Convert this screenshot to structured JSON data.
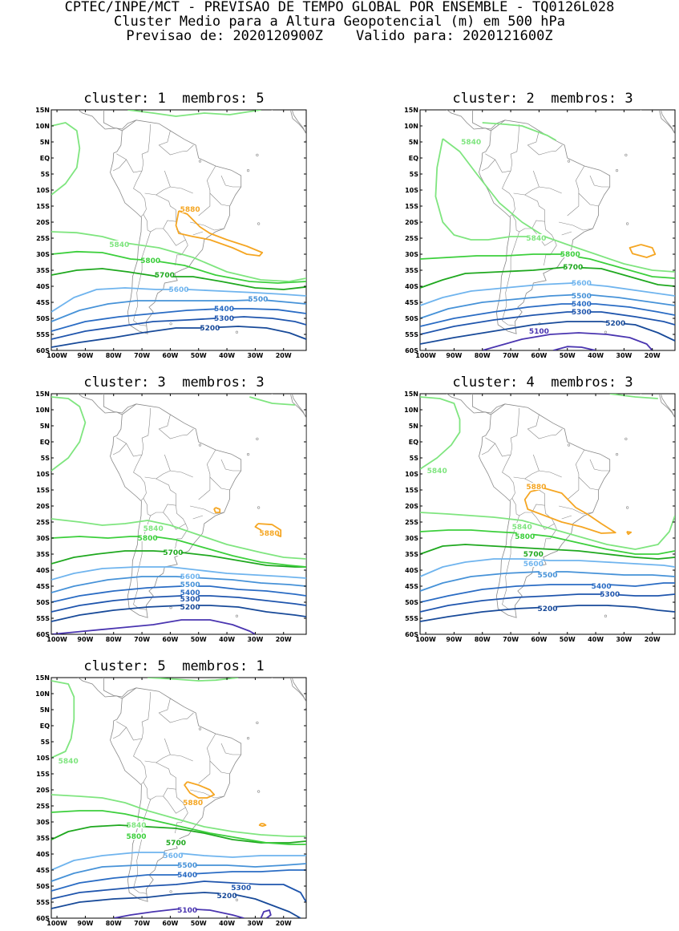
{
  "header": {
    "line1": "CPTEC/INPE/MCT - PREVISAO DE TEMPO GLOBAL POR ENSEMBLE - TQ0126L028",
    "line2": "Cluster Medio para a Altura Geopotencial (m) em 500 hPa",
    "line3": "Previsao de: 2020120900Z    Valido para: 2020121600Z"
  },
  "colors": {
    "5880": "#f5a623",
    "5840": "#7fe57f",
    "5800": "#3ccf3c",
    "5700": "#1fa81f",
    "5600": "#6fb4ee",
    "5500": "#4692d8",
    "5400": "#2a6cc4",
    "5300": "#1f55ad",
    "5200": "#184a99",
    "5100": "#4a35b0",
    "coast": "#888888"
  },
  "axes": {
    "lat_ticks": [
      "15N",
      "10N",
      "5N",
      "EQ",
      "5S",
      "10S",
      "15S",
      "20S",
      "25S",
      "30S",
      "35S",
      "40S",
      "45S",
      "50S",
      "55S",
      "60S"
    ],
    "lon_ticks": [
      "100W",
      "90W",
      "80W",
      "70W",
      "60W",
      "50W",
      "40W",
      "30W",
      "20W"
    ]
  },
  "panels": [
    {
      "title": "cluster: 1  membros: 5",
      "labels": [
        {
          "text": "5880",
          "lon": -53,
          "lat": -16
        },
        {
          "text": "5840",
          "lon": -78,
          "lat": -27
        },
        {
          "text": "5800",
          "lon": -67,
          "lat": -32
        },
        {
          "text": "5700",
          "lon": -62,
          "lat": -36.5
        },
        {
          "text": "5600",
          "lon": -57,
          "lat": -41
        },
        {
          "text": "5500",
          "lon": -29,
          "lat": -44
        },
        {
          "text": "5400",
          "lon": -41,
          "lat": -47
        },
        {
          "text": "5300",
          "lon": -41,
          "lat": -50
        },
        {
          "text": "5200",
          "lon": -46,
          "lat": -53
        }
      ]
    },
    {
      "title": "cluster: 2  membros: 3",
      "labels": [
        {
          "text": "5840",
          "lon": -84,
          "lat": 5
        },
        {
          "text": "5840",
          "lon": -61,
          "lat": -25
        },
        {
          "text": "5800",
          "lon": -49,
          "lat": -30
        },
        {
          "text": "5700",
          "lon": -48,
          "lat": -34
        },
        {
          "text": "5600",
          "lon": -45,
          "lat": -39
        },
        {
          "text": "5500",
          "lon": -45,
          "lat": -43
        },
        {
          "text": "5400",
          "lon": -45,
          "lat": -45.5
        },
        {
          "text": "5300",
          "lon": -45,
          "lat": -48
        },
        {
          "text": "5200",
          "lon": -33,
          "lat": -51.5
        },
        {
          "text": "5100",
          "lon": -60,
          "lat": -54
        }
      ]
    },
    {
      "title": "cluster: 3  membros: 3",
      "labels": [
        {
          "text": "5880",
          "lon": -25,
          "lat": -28.5
        },
        {
          "text": "5840",
          "lon": -66,
          "lat": -27
        },
        {
          "text": "5800",
          "lon": -68,
          "lat": -30
        },
        {
          "text": "5700",
          "lon": -59,
          "lat": -34.5
        },
        {
          "text": "5600",
          "lon": -53,
          "lat": -42
        },
        {
          "text": "5500",
          "lon": -53,
          "lat": -44.5
        },
        {
          "text": "5400",
          "lon": -53,
          "lat": -47
        },
        {
          "text": "5300",
          "lon": -53,
          "lat": -49
        },
        {
          "text": "5200",
          "lon": -53,
          "lat": -51.5
        }
      ]
    },
    {
      "title": "cluster: 4  membros: 3",
      "labels": [
        {
          "text": "5880",
          "lon": -61,
          "lat": -14
        },
        {
          "text": "5840",
          "lon": -96,
          "lat": -9
        },
        {
          "text": "5840",
          "lon": -66,
          "lat": -26.5
        },
        {
          "text": "5800",
          "lon": -65,
          "lat": -29.5
        },
        {
          "text": "5700",
          "lon": -62,
          "lat": -35
        },
        {
          "text": "5600",
          "lon": -62,
          "lat": -38
        },
        {
          "text": "5500",
          "lon": -57,
          "lat": -41.5
        },
        {
          "text": "5400",
          "lon": -38,
          "lat": -45
        },
        {
          "text": "5300",
          "lon": -35,
          "lat": -47.5
        },
        {
          "text": "5200",
          "lon": -57,
          "lat": -52
        }
      ]
    },
    {
      "title": "cluster: 5  membros: 1",
      "labels": [
        {
          "text": "5880",
          "lon": -52,
          "lat": -24
        },
        {
          "text": "5840",
          "lon": -96,
          "lat": -11
        },
        {
          "text": "5840",
          "lon": -72,
          "lat": -31
        },
        {
          "text": "5800",
          "lon": -72,
          "lat": -34.5
        },
        {
          "text": "5700",
          "lon": -58,
          "lat": -36.5
        },
        {
          "text": "5600",
          "lon": -59,
          "lat": -40.5
        },
        {
          "text": "5500",
          "lon": -54,
          "lat": -43.5
        },
        {
          "text": "5400",
          "lon": -54,
          "lat": -46.5
        },
        {
          "text": "5300",
          "lon": -35,
          "lat": -50.5
        },
        {
          "text": "5200",
          "lon": -40,
          "lat": -53
        },
        {
          "text": "5100",
          "lon": -54,
          "lat": -57.5
        }
      ]
    }
  ]
}
